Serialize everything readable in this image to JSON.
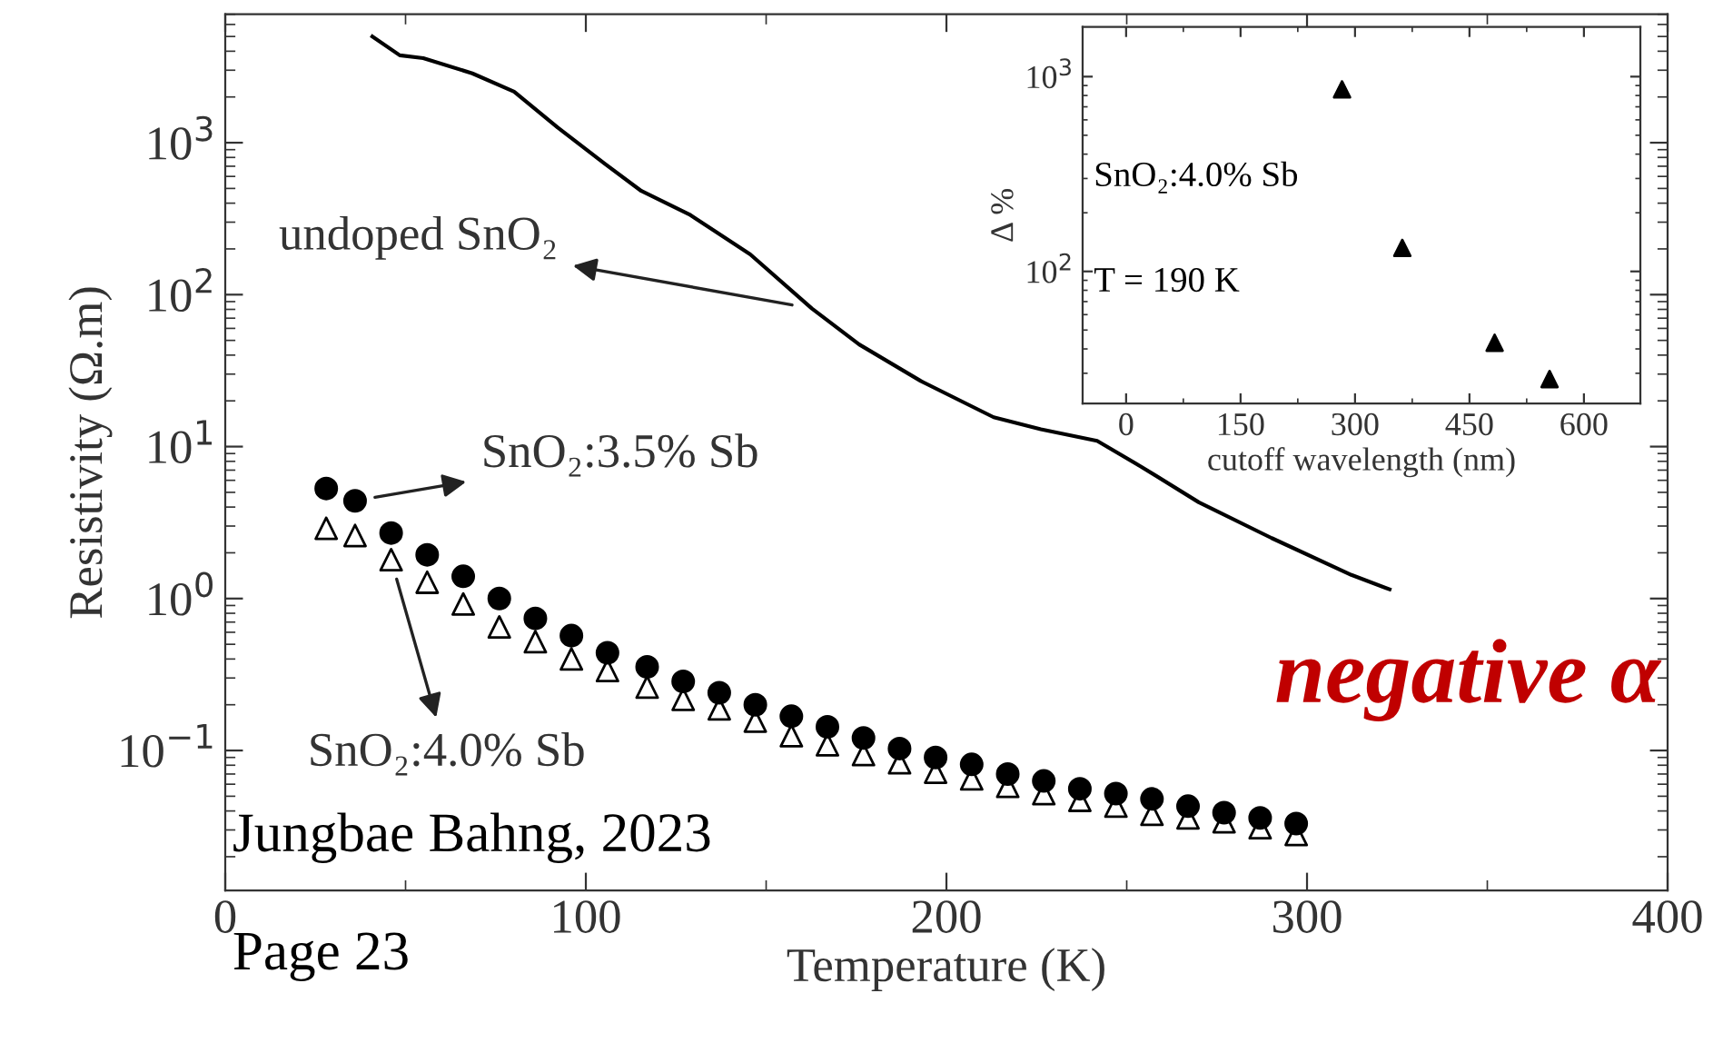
{
  "chart_data": [
    {
      "type": "line",
      "xlabel": "Temperature (K)",
      "ylabel": "Resistivity (Ω.m)",
      "log": "y",
      "xlim": [
        0,
        400
      ],
      "xticks": [
        0,
        100,
        200,
        300,
        400
      ],
      "ylim": [
        0.012,
        7000
      ],
      "yticks": [
        {
          "value": 0.1,
          "label": "10$^{−1}$"
        },
        {
          "value": 1,
          "label": "10$^{0}$"
        },
        {
          "value": 10,
          "label": "10$^{1}$"
        },
        {
          "value": 100,
          "label": "10$^{2}$"
        },
        {
          "value": 1000,
          "label": "10$^{3}$"
        }
      ],
      "grid": false,
      "legend": false,
      "series": [
        {
          "name": "undoped SnO₂",
          "type": "line",
          "color": "#000000",
          "marker": "none",
          "line_style": "solid",
          "x": [
            40.8,
            48.4,
            54.9,
            68.5,
            80.1,
            92.2,
            105.3,
            115.4,
            129,
            145.6,
            162.7,
            175.8,
            192.9,
            213.1,
            226.2,
            241.8,
            253.9,
            270,
            290.2,
            312.3,
            322.9
          ],
          "values": [
            5000,
            3760,
            3600,
            2860,
            2170,
            1260,
            726,
            481,
            334,
            184,
            81,
            47,
            27,
            15.6,
            13,
            10.9,
            7.4,
            4.3,
            2.5,
            1.43,
            1.15
          ]
        },
        {
          "name": "SnO₂:3.5% Sb",
          "type": "scatter",
          "color": "#000000",
          "marker": "circle",
          "x": [
            28,
            36,
            46,
            56,
            66,
            76,
            86,
            96,
            106,
            117,
            127,
            137,
            147,
            157,
            167,
            177,
            187,
            197,
            207,
            217,
            227,
            237,
            247,
            257,
            267,
            277,
            287,
            297
          ],
          "values": [
            5.3,
            4.4,
            2.7,
            1.94,
            1.4,
            1.0,
            0.74,
            0.57,
            0.44,
            0.355,
            0.285,
            0.24,
            0.2,
            0.168,
            0.143,
            0.121,
            0.103,
            0.09,
            0.081,
            0.07,
            0.063,
            0.056,
            0.052,
            0.048,
            0.043,
            0.039,
            0.036,
            0.033
          ]
        },
        {
          "name": "SnO₂:4.0% Sb",
          "type": "scatter",
          "color": "#000000",
          "marker": "triangle",
          "x": [
            28,
            36,
            46,
            56,
            66,
            76,
            86,
            96,
            106,
            117,
            127,
            137,
            147,
            157,
            167,
            177,
            187,
            197,
            207,
            217,
            227,
            237,
            247,
            257,
            267,
            277,
            287,
            297
          ],
          "values": [
            2.9,
            2.6,
            1.8,
            1.28,
            0.92,
            0.65,
            0.52,
            0.4,
            0.336,
            0.261,
            0.217,
            0.188,
            0.156,
            0.125,
            0.109,
            0.094,
            0.083,
            0.072,
            0.065,
            0.058,
            0.052,
            0.047,
            0.043,
            0.038,
            0.036,
            0.034,
            0.031,
            0.028
          ]
        }
      ],
      "annotations": [
        "Jungbae Bahng, 2023",
        "Page 23",
        "negative α"
      ]
    },
    {
      "type": "scatter",
      "xlabel": "cutoff wavelength (nm)",
      "ylabel": "Δ %",
      "log": "y",
      "xlim": [
        -57,
        674
      ],
      "xticks": [
        0,
        150,
        300,
        450,
        600
      ],
      "ylim": [
        21,
        1800
      ],
      "yticks": [
        {
          "value": 100,
          "label": "10$^{2}$"
        },
        {
          "value": 1000,
          "label": "10$^{3}$"
        }
      ],
      "grid": false,
      "legend": false,
      "marker": "triangle",
      "series": [
        {
          "color": "#000000",
          "x": [
            283,
            362,
            483,
            555
          ],
          "values": [
            860,
            132,
            43,
            28
          ]
        }
      ],
      "annotations": [
        "SnO₂:4.0% Sb",
        "T = 190 K"
      ]
    }
  ]
}
